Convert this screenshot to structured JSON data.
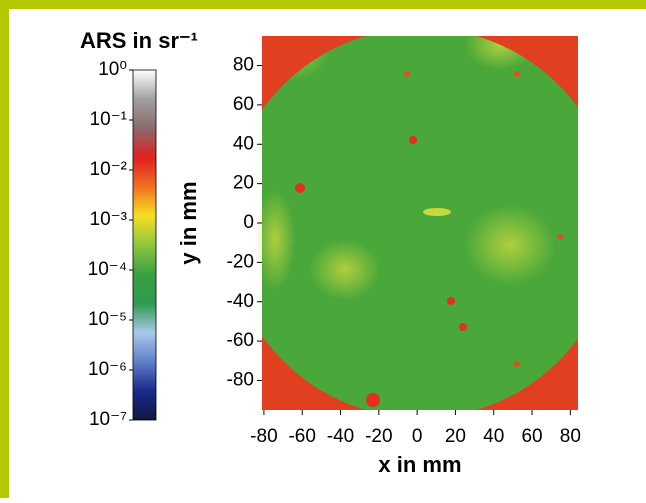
{
  "chart_data": {
    "type": "heatmap",
    "colorbar_title": "ARS in sr⁻¹",
    "colorbar_log": true,
    "colorbar_lim": [
      1e-07,
      1
    ],
    "colorbar_ticks": [
      {
        "value": 1,
        "label": "10⁰"
      },
      {
        "value": 0.1,
        "label": "10⁻¹"
      },
      {
        "value": 0.01,
        "label": "10⁻²"
      },
      {
        "value": 0.001,
        "label": "10⁻³"
      },
      {
        "value": 0.0001,
        "label": "10⁻⁴"
      },
      {
        "value": 1e-05,
        "label": "10⁻⁵"
      },
      {
        "value": 1e-06,
        "label": "10⁻⁶"
      },
      {
        "value": 1e-07,
        "label": "10⁻⁷"
      }
    ],
    "colorscale": [
      "#ffffff",
      "#a0a0a0",
      "#8a6a6a",
      "#e02020",
      "#f07020",
      "#f5e020",
      "#8ec63f",
      "#3aa040",
      "#2e9a50",
      "#a8c8e8",
      "#6080c8",
      "#1a2a8a",
      "#101840"
    ],
    "x_label": "x in mm",
    "y_label": "y in mm",
    "xlim": [
      -81,
      84
    ],
    "ylim": [
      -95,
      95
    ],
    "xticks": [
      -80,
      -60,
      -40,
      -20,
      0,
      20,
      40,
      60,
      80
    ],
    "yticks": [
      80,
      60,
      40,
      20,
      0,
      -20,
      -40,
      -60,
      -80
    ]
  }
}
